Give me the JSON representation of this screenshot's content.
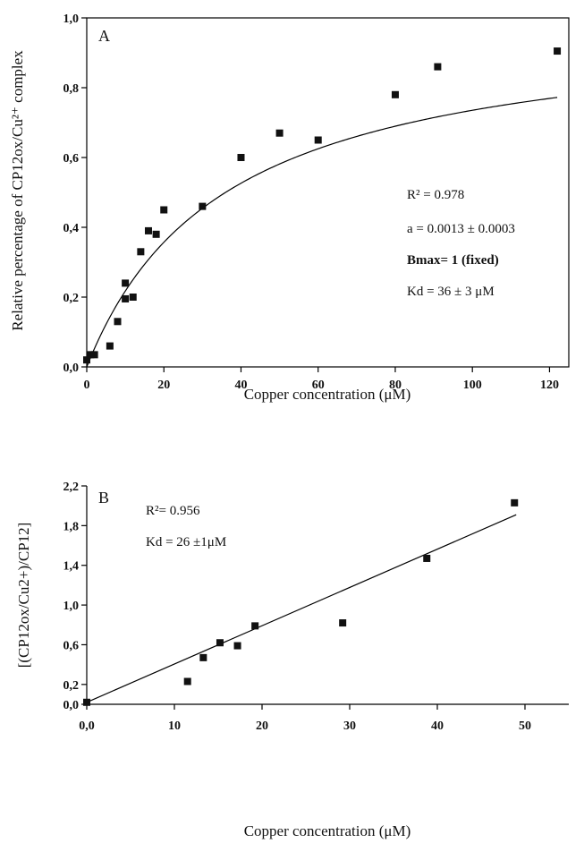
{
  "chart_data": [
    {
      "type": "scatter",
      "panel_label": "A",
      "xlabel": "Copper concentration (μM)",
      "ylabel": "Relative percentage of CP12ox/Cu²⁺ complex",
      "xlim": [
        0,
        125
      ],
      "ylim": [
        0,
        1.0
      ],
      "x_ticks": [
        0,
        20,
        40,
        60,
        80,
        100,
        120
      ],
      "x_tick_labels": [
        "0",
        "20",
        "40",
        "60",
        "80",
        "100",
        "120"
      ],
      "y_ticks": [
        0,
        0.2,
        0.4,
        0.6,
        0.8,
        1.0
      ],
      "y_tick_labels": [
        "0,0",
        "0,2",
        "0,4",
        "0,6",
        "0,8",
        "1,0"
      ],
      "grid": false,
      "points": [
        {
          "x": 0,
          "y": 0.02
        },
        {
          "x": 1,
          "y": 0.035
        },
        {
          "x": 2,
          "y": 0.035
        },
        {
          "x": 6,
          "y": 0.06
        },
        {
          "x": 8,
          "y": 0.13
        },
        {
          "x": 10,
          "y": 0.195
        },
        {
          "x": 10,
          "y": 0.24
        },
        {
          "x": 12,
          "y": 0.2
        },
        {
          "x": 14,
          "y": 0.33
        },
        {
          "x": 16,
          "y": 0.39
        },
        {
          "x": 18,
          "y": 0.38
        },
        {
          "x": 20,
          "y": 0.45
        },
        {
          "x": 30,
          "y": 0.46
        },
        {
          "x": 40,
          "y": 0.6
        },
        {
          "x": 50,
          "y": 0.67
        },
        {
          "x": 60,
          "y": 0.65
        },
        {
          "x": 80,
          "y": 0.78
        },
        {
          "x": 91,
          "y": 0.86
        },
        {
          "x": 122,
          "y": 0.905
        }
      ],
      "fit": {
        "model": "hyperbolic",
        "Bmax": 1,
        "Kd": 36
      },
      "annotations": [
        "R² =  0.978",
        "a = 0.0013 ± 0.0003",
        "Bmax= 1 (fixed)",
        "Kd = 36 ± 3 μM"
      ]
    },
    {
      "type": "scatter",
      "panel_label": "B",
      "xlabel": "Copper concentration (μM)",
      "ylabel": "[(CP12ox/Cu2+)/CP12]",
      "xlim": [
        0,
        55
      ],
      "ylim": [
        0,
        2.2
      ],
      "x_ticks": [
        0,
        10,
        20,
        30,
        40,
        50
      ],
      "x_tick_labels": [
        "0,0",
        "10",
        "20",
        "30",
        "40",
        "50"
      ],
      "y_ticks": [
        0,
        0.2,
        0.6,
        1.0,
        1.4,
        1.8,
        2.2
      ],
      "y_tick_labels": [
        "0,0",
        "0,2",
        "0,6",
        "1,0",
        "1,4",
        "1,8",
        "2,2"
      ],
      "grid": false,
      "points": [
        {
          "x": 0,
          "y": 0.02
        },
        {
          "x": 11.5,
          "y": 0.23
        },
        {
          "x": 13.3,
          "y": 0.47
        },
        {
          "x": 15.2,
          "y": 0.62
        },
        {
          "x": 17.2,
          "y": 0.59
        },
        {
          "x": 19.2,
          "y": 0.79
        },
        {
          "x": 29.2,
          "y": 0.82
        },
        {
          "x": 38.8,
          "y": 1.47
        },
        {
          "x": 48.8,
          "y": 2.03
        }
      ],
      "fit": {
        "model": "linear",
        "x0": 0,
        "y0": 0.02,
        "x1": 49,
        "y1": 1.91
      },
      "annotations": [
        "R²= 0.956",
        "Kd = 26 ±1μM"
      ]
    }
  ]
}
